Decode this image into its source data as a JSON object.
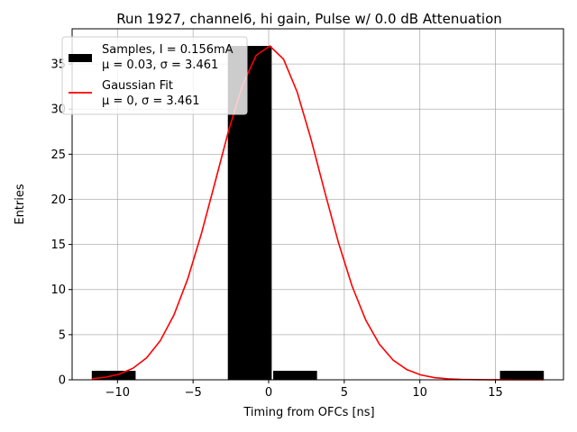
{
  "chart_data": {
    "type": "bar",
    "title": "Run 1927, channel6, hi gain, Pulse w/ 0.0 dB Attenuation",
    "xlabel": "Timing from OFCs [ns]",
    "ylabel": "Entries",
    "xlim": [
      -13.0,
      19.5
    ],
    "ylim": [
      0,
      38.9
    ],
    "grid": true,
    "legend_position": "top-left",
    "x_ticks": [
      -10,
      -5,
      0,
      5,
      10,
      15
    ],
    "x_tick_labels": [
      "−10",
      "−5",
      "0",
      "5",
      "10",
      "15"
    ],
    "y_ticks": [
      0,
      5,
      10,
      15,
      20,
      25,
      30,
      35
    ],
    "y_tick_labels": [
      "0",
      "5",
      "10",
      "15",
      "20",
      "25",
      "30",
      "35"
    ],
    "histogram": {
      "name": "Samples, I = 0.156mA",
      "stats": "μ = 0.03, σ = 3.461",
      "color": "#000000",
      "bins": [
        {
          "x0": -11.7,
          "x1": -8.8,
          "count": 1
        },
        {
          "x0": -2.7,
          "x1": 0.2,
          "count": 37
        },
        {
          "x0": 0.3,
          "x1": 3.2,
          "count": 1
        },
        {
          "x0": 15.3,
          "x1": 18.2,
          "count": 1
        }
      ]
    },
    "fit": {
      "name": "Gaussian Fit",
      "stats": "μ = 0, σ = 3.461",
      "color": "#ff0000",
      "amplitude": 37,
      "mu": 0,
      "sigma": 3.461,
      "x_range": [
        -11.7,
        18.2
      ]
    }
  }
}
